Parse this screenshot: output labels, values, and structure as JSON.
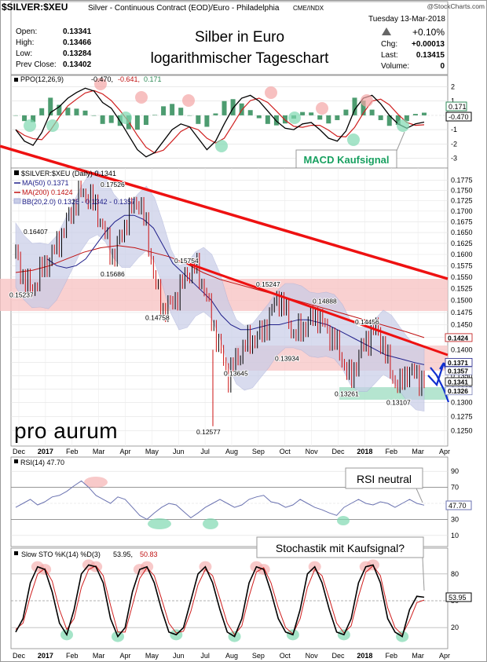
{
  "header": {
    "symbol": "$SILVER:$XEU",
    "description": "Silver - Continuous Contract (EOD)/Euro - Philadelphia",
    "exchange": "CME/INDX",
    "watermark": "@StockCharts.com",
    "date": "Tuesday  13-Mar-2018",
    "change_pct": "+0.10%",
    "chg_label": "Chg:",
    "chg_value": "+0.00013",
    "last_label": "Last:",
    "last_value": "0.13415",
    "volume_label": "Volume:",
    "volume_value": "0",
    "open_label": "Open:",
    "open_value": "0.13341",
    "high_label": "High:",
    "high_value": "0.13466",
    "low_label": "Low:",
    "low_value": "0.13284",
    "prevclose_label": "Prev Close:",
    "prevclose_value": "0.13402",
    "title_line1": "Silber in Euro",
    "title_line2": "logarithmischer Tageschart"
  },
  "colors": {
    "ppo_line": "#000000",
    "ppo_signal": "#d02020",
    "ppo_hist": "#2e8b57",
    "ma50": "#20208a",
    "ma200": "#c01010",
    "bb_fill": "#c8cde8",
    "trendline": "#ee1111",
    "zone_pink": "#f7c4c4",
    "zone_green": "#a8e0c8",
    "buy_arrow": "#1030d0",
    "rsi_line": "#6a72b0",
    "sto_k": "#000000",
    "sto_d": "#d02020"
  },
  "chart_data": [
    {
      "type": "line",
      "panel": "ppo",
      "legend": [
        "PPO(12,26,9)",
        "-0.470,",
        "-0.641,",
        "0.171"
      ],
      "y_ticks": [
        "2",
        "1",
        "0",
        "-1",
        "-2",
        "-3"
      ],
      "ylim": [
        -3.3,
        2.3
      ],
      "last_values": {
        "ppo": "-0.470",
        "hist": "0.171"
      },
      "annotation": "MACD Kaufsignal",
      "series": [
        {
          "name": "PPO",
          "values": [
            -1.0,
            -1.8,
            -2.1,
            -1.2,
            0.2,
            0.6,
            1.2,
            1.6,
            1.9,
            1.7,
            0.9,
            0.5,
            -0.4,
            -1.4,
            -2.4,
            -2.9,
            -2.6,
            -1.8,
            -1.0,
            -0.6,
            -0.8,
            -1.6,
            -2.4,
            -1.8,
            -0.6,
            0.5,
            1.2,
            1.4,
            1.0,
            0.3,
            -0.4,
            -0.9,
            -1.0,
            -0.6,
            -0.5,
            -1.0,
            -1.6,
            -1.8,
            -1.1,
            0.4,
            1.2,
            1.4,
            0.8,
            0.0,
            -0.6,
            -0.9,
            -0.6,
            -0.47
          ]
        }
      ]
    },
    {
      "type": "line",
      "panel": "price",
      "scale": "log",
      "legend": {
        "price": "$SILVER:$XEU (Daily) 0.1341",
        "ma50": "MA(50) 0.1371",
        "ma200": "MA(200) 0.1424",
        "bb": "BB(20,2.0) 0.1326 - 0.1342 - 0.1357"
      },
      "y_ticks": [
        "0.1775",
        "0.1750",
        "0.1725",
        "0.1700",
        "0.1675",
        "0.1650",
        "0.1625",
        "0.1600",
        "0.1575",
        "0.1550",
        "0.1525",
        "0.1500",
        "0.1475",
        "0.1450",
        "0.1425",
        "0.1400",
        "0.1375",
        "0.1350",
        "0.1325",
        "0.1300",
        "0.1275",
        "0.1250"
      ],
      "ylim": [
        0.1245,
        0.179
      ],
      "x_ticks": [
        "Dec",
        "2017",
        "Feb",
        "Mar",
        "Apr",
        "May",
        "Jun",
        "Jul",
        "Aug",
        "Sep",
        "Oct",
        "Nov",
        "Dec",
        "2018",
        "Feb",
        "Mar",
        "Apr"
      ],
      "annotated_levels": [
        {
          "label": "0.16407",
          "value": 0.16407
        },
        {
          "label": "0.17526",
          "value": 0.17526
        },
        {
          "label": "0.15686",
          "value": 0.15686
        },
        {
          "label": "0.15237",
          "value": 0.15237
        },
        {
          "label": "0.15754",
          "value": 0.15754
        },
        {
          "label": "0.14758",
          "value": 0.14758
        },
        {
          "label": "0.15247",
          "value": 0.15247
        },
        {
          "label": "0.14888",
          "value": 0.14888
        },
        {
          "label": "0.14456",
          "value": 0.14456
        },
        {
          "label": "0.13934",
          "value": 0.13934
        },
        {
          "label": "0.13645",
          "value": 0.13645
        },
        {
          "label": "0.13261",
          "value": 0.13261
        },
        {
          "label": "0.13107",
          "value": 0.13107
        },
        {
          "label": "0.12577",
          "value": 0.12577
        }
      ],
      "value_tags": [
        {
          "label": "0.1424",
          "value": 0.1424
        },
        {
          "label": "0.1371",
          "value": 0.1371
        },
        {
          "label": "0.1357",
          "value": 0.1357
        },
        {
          "label": "0.1341",
          "value": 0.1341
        },
        {
          "label": "0.1326",
          "value": 0.1326
        }
      ],
      "series": [
        {
          "name": "Close",
          "values": [
            0.16,
            0.1545,
            0.152,
            0.156,
            0.1585,
            0.162,
            0.166,
            0.171,
            0.1745,
            0.1735,
            0.17,
            0.164,
            0.159,
            0.165,
            0.17,
            0.173,
            0.166,
            0.154,
            0.148,
            0.149,
            0.152,
            0.156,
            0.1575,
            0.153,
            0.146,
            0.14,
            0.135,
            0.138,
            0.141,
            0.142,
            0.143,
            0.146,
            0.151,
            0.148,
            0.143,
            0.144,
            0.146,
            0.147,
            0.144,
            0.142,
            0.138,
            0.134,
            0.139,
            0.142,
            0.1445,
            0.141,
            0.135,
            0.133,
            0.136,
            0.135,
            0.1341
          ]
        },
        {
          "name": "MA(50)",
          "values": [
            0.159,
            0.1575,
            0.157,
            0.1575,
            0.159,
            0.162,
            0.165,
            0.1675,
            0.169,
            0.169,
            0.168,
            0.166,
            0.162,
            0.158,
            0.156,
            0.154,
            0.152,
            0.15,
            0.147,
            0.145,
            0.144,
            0.144,
            0.1445,
            0.145,
            0.145,
            0.1455,
            0.146,
            0.146,
            0.1455,
            0.145,
            0.144,
            0.143,
            0.142,
            0.141,
            0.14,
            0.139,
            0.1385,
            0.138,
            0.1375,
            0.1371
          ]
        },
        {
          "name": "MA(200)",
          "values": [
            0.156,
            0.1565,
            0.1575,
            0.159,
            0.1605,
            0.1615,
            0.162,
            0.1615,
            0.1605,
            0.1595,
            0.158,
            0.156,
            0.1545,
            0.1535,
            0.1525,
            0.1515,
            0.1505,
            0.1495,
            0.1485,
            0.1475,
            0.1465,
            0.1455,
            0.1445,
            0.1435,
            0.1424
          ]
        }
      ],
      "annotations": [
        "pro aurum"
      ]
    },
    {
      "type": "line",
      "panel": "rsi",
      "legend": "RSI(14) 47.70",
      "y_ticks": [
        "90",
        "70",
        "50",
        "30",
        "10"
      ],
      "ylim": [
        0,
        100
      ],
      "last_value": "47.70",
      "annotation": "RSI neutral",
      "series": [
        {
          "name": "RSI",
          "values": [
            45,
            50,
            55,
            48,
            52,
            58,
            60,
            65,
            72,
            78,
            70,
            60,
            55,
            50,
            58,
            55,
            45,
            35,
            30,
            38,
            45,
            50,
            48,
            40,
            32,
            38,
            45,
            50,
            55,
            50,
            45,
            48,
            55,
            58,
            60,
            52,
            50,
            45,
            48,
            55,
            50,
            45,
            42,
            38,
            35,
            45,
            50,
            55,
            50,
            48,
            52,
            50,
            45,
            50,
            55,
            50,
            47.7
          ]
        }
      ]
    },
    {
      "type": "line",
      "panel": "stochastic",
      "legend": [
        "Slow STO %K(14) %D(3)",
        "53.95,",
        "50.83"
      ],
      "y_ticks": [
        "80",
        "50",
        "20"
      ],
      "ylim": [
        0,
        100
      ],
      "last_value": "53.95",
      "annotation": "Stochastik mit Kaufsignal?",
      "series": [
        {
          "name": "%K",
          "values": [
            15,
            30,
            70,
            88,
            85,
            60,
            25,
            12,
            40,
            80,
            90,
            88,
            70,
            30,
            10,
            20,
            60,
            85,
            88,
            70,
            40,
            15,
            12,
            20,
            50,
            80,
            88,
            70,
            40,
            15,
            10,
            30,
            70,
            88,
            85,
            60,
            30,
            15,
            12,
            40,
            80,
            88,
            70,
            40,
            15,
            12,
            30,
            70,
            88,
            90,
            70,
            30,
            15,
            10,
            40,
            55,
            53.95
          ]
        },
        {
          "name": "%D",
          "values": [
            18,
            25,
            55,
            80,
            86,
            72,
            40,
            18,
            30,
            65,
            85,
            89,
            78,
            45,
            15,
            15,
            45,
            75,
            87,
            78,
            52,
            25,
            14,
            16,
            38,
            68,
            85,
            78,
            52,
            25,
            12,
            22,
            55,
            82,
            87,
            70,
            42,
            20,
            13,
            30,
            65,
            85,
            78,
            52,
            25,
            14,
            22,
            55,
            82,
            89,
            78,
            42,
            20,
            12,
            28,
            48,
            50.83
          ]
        }
      ]
    }
  ]
}
